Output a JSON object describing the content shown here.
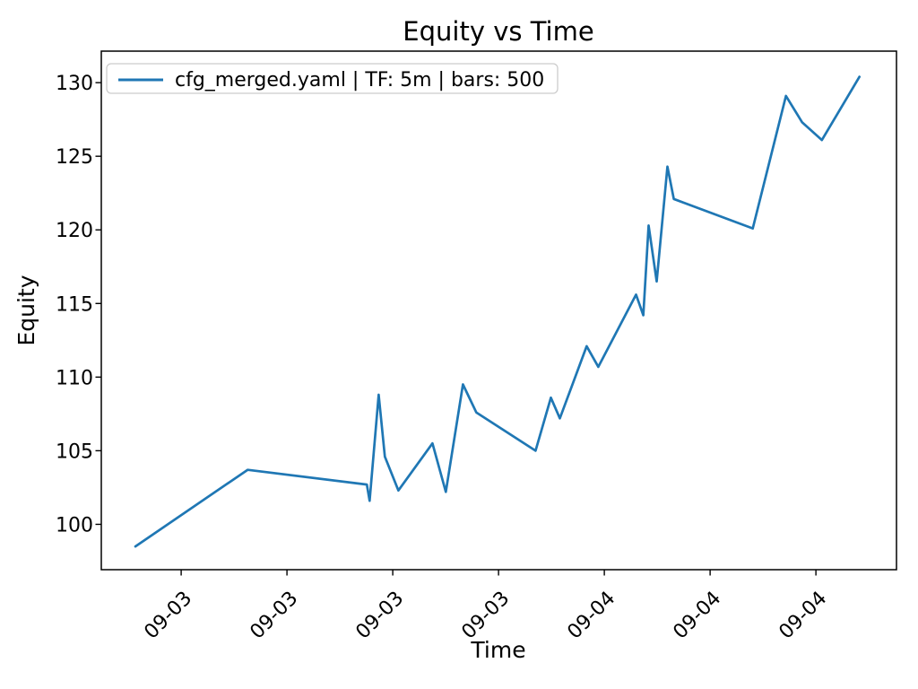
{
  "figure": {
    "background": "#ffffff",
    "spine_color": "#000000",
    "text_color": "#000000",
    "legend": {
      "label": "cfg_merged.yaml | TF: 5m | bars: 500",
      "border_color": "#cccccc",
      "background": "#ffffff"
    }
  },
  "chart_data": {
    "type": "line",
    "title": "Equity vs Time",
    "xlabel": "Time",
    "ylabel": "Equity",
    "grid": false,
    "legend_position": "upper left",
    "x_tick_note": "t = hours since 09-03 00:00; tick labels show date only",
    "x_ticks": [
      {
        "t": 0,
        "label": "09-03"
      },
      {
        "t": 6,
        "label": "09-03"
      },
      {
        "t": 12,
        "label": "09-03"
      },
      {
        "t": 18,
        "label": "09-03"
      },
      {
        "t": 24,
        "label": "09-04"
      },
      {
        "t": 30,
        "label": "09-04"
      },
      {
        "t": 36,
        "label": "09-04"
      }
    ],
    "y_ticks": [
      100,
      105,
      110,
      115,
      120,
      125,
      130
    ],
    "xlim_hours": [
      -4.53,
      40.57
    ],
    "ylim": [
      96.92,
      132.14
    ],
    "series": [
      {
        "name": "cfg_merged.yaml | TF: 5m | bars: 500",
        "color": "#1f77b4",
        "line_width": 2.7,
        "points": [
          {
            "time": "09-02 21:24",
            "t": -2.6,
            "equity": 98.5
          },
          {
            "time": "09-03 03:46",
            "t": 3.77,
            "equity": 103.7
          },
          {
            "time": "09-03 10:32",
            "t": 10.53,
            "equity": 102.7
          },
          {
            "time": "09-03 10:41",
            "t": 10.69,
            "equity": 101.6
          },
          {
            "time": "09-03 11:12",
            "t": 11.2,
            "equity": 108.8
          },
          {
            "time": "09-03 11:33",
            "t": 11.55,
            "equity": 104.6
          },
          {
            "time": "09-03 12:19",
            "t": 12.32,
            "equity": 102.3
          },
          {
            "time": "09-03 14:15",
            "t": 14.25,
            "equity": 105.5
          },
          {
            "time": "09-03 15:01",
            "t": 15.01,
            "equity": 102.2
          },
          {
            "time": "09-03 15:59",
            "t": 15.98,
            "equity": 109.5
          },
          {
            "time": "09-03 16:44",
            "t": 16.74,
            "equity": 107.6
          },
          {
            "time": "09-03 20:06",
            "t": 20.1,
            "equity": 105.0
          },
          {
            "time": "09-03 20:58",
            "t": 20.97,
            "equity": 108.6
          },
          {
            "time": "09-03 21:29",
            "t": 21.48,
            "equity": 107.2
          },
          {
            "time": "09-03 23:00",
            "t": 23.0,
            "equity": 112.1
          },
          {
            "time": "09-03 23:40",
            "t": 23.66,
            "equity": 110.7
          },
          {
            "time": "09-04 01:48",
            "t": 25.8,
            "equity": 115.6
          },
          {
            "time": "09-04 02:13",
            "t": 26.21,
            "equity": 114.2
          },
          {
            "time": "09-04 02:31",
            "t": 26.51,
            "equity": 120.3
          },
          {
            "time": "09-04 02:58",
            "t": 26.97,
            "equity": 116.5
          },
          {
            "time": "09-04 03:35",
            "t": 27.58,
            "equity": 124.3
          },
          {
            "time": "09-04 03:56",
            "t": 27.94,
            "equity": 122.1
          },
          {
            "time": "09-04 08:25",
            "t": 32.42,
            "equity": 120.1
          },
          {
            "time": "09-04 10:18",
            "t": 34.3,
            "equity": 129.1
          },
          {
            "time": "09-04 11:13",
            "t": 35.22,
            "equity": 127.3
          },
          {
            "time": "09-04 12:20",
            "t": 36.34,
            "equity": 126.1
          },
          {
            "time": "09-04 14:28",
            "t": 38.47,
            "equity": 130.4
          }
        ]
      }
    ]
  }
}
